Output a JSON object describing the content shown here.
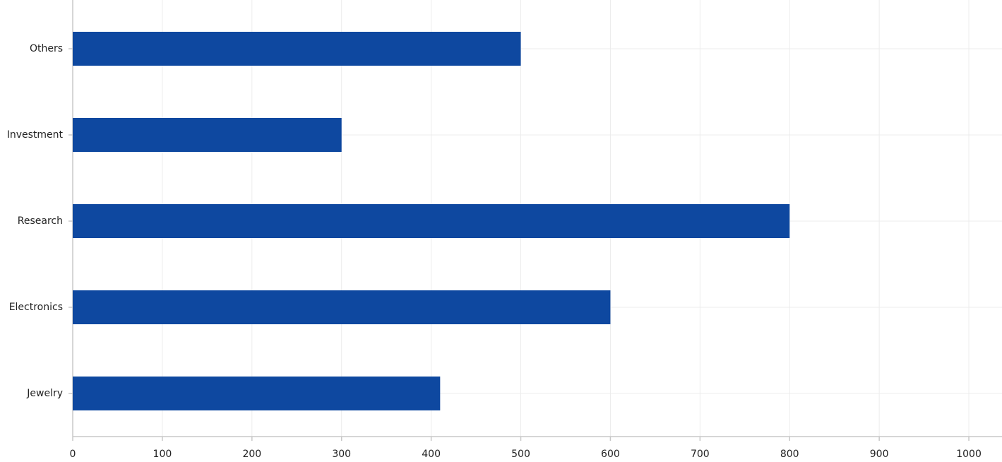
{
  "chart_data": {
    "type": "bar",
    "orientation": "horizontal",
    "categories": [
      "Jewelry",
      "Electronics",
      "Research",
      "Investment",
      "Others"
    ],
    "values": [
      410,
      600,
      800,
      300,
      500
    ],
    "color": "#0e48a0",
    "xlim": [
      0,
      1037
    ],
    "xticks": [
      0,
      100,
      200,
      300,
      400,
      500,
      600,
      700,
      800,
      900,
      1000
    ],
    "grid": true
  }
}
